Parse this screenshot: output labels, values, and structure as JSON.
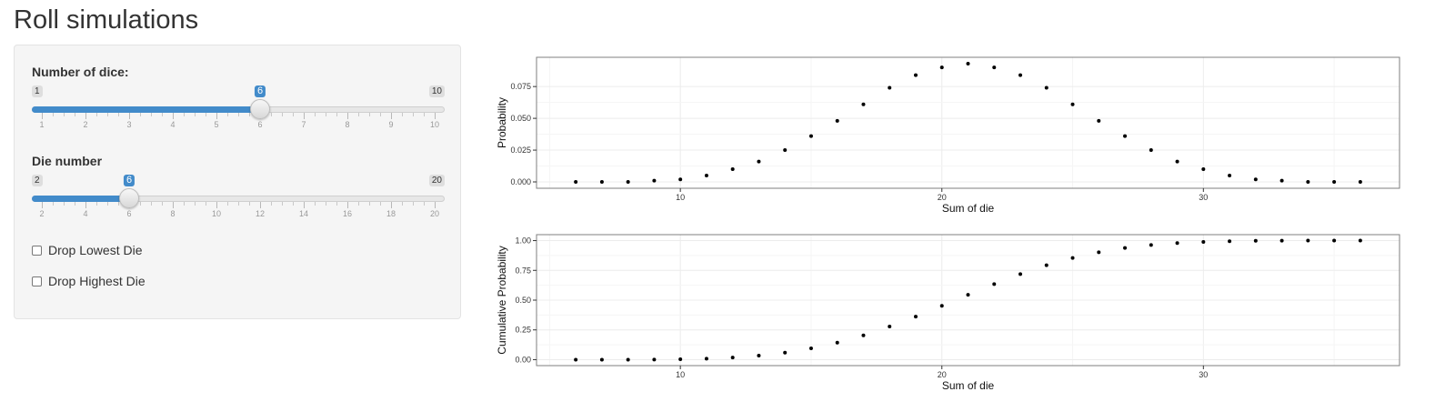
{
  "page": {
    "title": "Roll simulations"
  },
  "controls": {
    "dice": {
      "label": "Number of dice:",
      "min": 1,
      "max": 10,
      "value": 6,
      "step": 1,
      "ticks": [
        "1",
        "2",
        "3",
        "4",
        "5",
        "6",
        "7",
        "8",
        "9",
        "10"
      ]
    },
    "die_number": {
      "label": "Die number",
      "min": 2,
      "max": 20,
      "value": 6,
      "step": 2,
      "ticks": [
        "2",
        "4",
        "6",
        "8",
        "10",
        "12",
        "14",
        "16",
        "18",
        "20"
      ]
    },
    "drop_lowest": {
      "label": "Drop Lowest Die",
      "checked": false
    },
    "drop_highest": {
      "label": "Drop Highest Die",
      "checked": false
    }
  },
  "chart_data": [
    {
      "type": "scatter",
      "xlabel": "Sum of die",
      "ylabel": "Probability",
      "xlim": [
        4.5,
        37.5
      ],
      "ylim": [
        -0.005,
        0.098
      ],
      "x_ticks": [
        "10",
        "20",
        "30"
      ],
      "y_ticks": [
        "0.000",
        "0.025",
        "0.050",
        "0.075"
      ],
      "grid": true,
      "x": [
        6,
        7,
        8,
        9,
        10,
        11,
        12,
        13,
        14,
        15,
        16,
        17,
        18,
        19,
        20,
        21,
        22,
        23,
        24,
        25,
        26,
        27,
        28,
        29,
        30,
        31,
        32,
        33,
        34,
        35,
        36
      ],
      "y": [
        0.0,
        0.0,
        0.0,
        0.001,
        0.002,
        0.005,
        0.01,
        0.016,
        0.025,
        0.036,
        0.048,
        0.061,
        0.074,
        0.084,
        0.09,
        0.093,
        0.09,
        0.084,
        0.074,
        0.061,
        0.048,
        0.036,
        0.025,
        0.016,
        0.01,
        0.005,
        0.002,
        0.001,
        0.0,
        0.0,
        0.0
      ]
    },
    {
      "type": "scatter",
      "xlabel": "Sum of die",
      "ylabel": "Cumulative Probability",
      "xlim": [
        4.5,
        37.5
      ],
      "ylim": [
        -0.05,
        1.05
      ],
      "x_ticks": [
        "10",
        "20",
        "30"
      ],
      "y_ticks": [
        "0.00",
        "0.25",
        "0.50",
        "0.75",
        "1.00"
      ],
      "grid": true,
      "x": [
        6,
        7,
        8,
        9,
        10,
        11,
        12,
        13,
        14,
        15,
        16,
        17,
        18,
        19,
        20,
        21,
        22,
        23,
        24,
        25,
        26,
        27,
        28,
        29,
        30,
        31,
        32,
        33,
        34,
        35,
        36
      ],
      "y": [
        0.0,
        0.0,
        0.0,
        0.001,
        0.003,
        0.008,
        0.018,
        0.034,
        0.059,
        0.095,
        0.143,
        0.204,
        0.278,
        0.362,
        0.452,
        0.545,
        0.635,
        0.719,
        0.793,
        0.854,
        0.902,
        0.938,
        0.963,
        0.979,
        0.989,
        0.995,
        0.998,
        0.999,
        1.0,
        1.0,
        1.0
      ]
    }
  ]
}
